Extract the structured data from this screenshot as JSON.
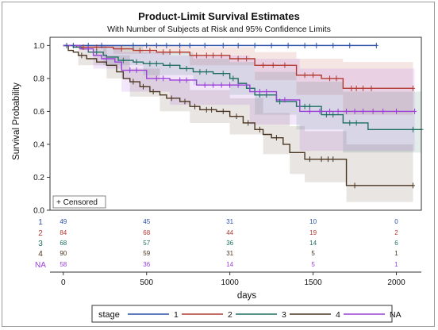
{
  "chart_data": {
    "type": "line",
    "title": "Product-Limit Survival Estimates",
    "subtitle": "With Number of Subjects at Risk and 95% Confidence Limits",
    "xlabel": "days",
    "ylabel": "Survival Probability",
    "xlim": [
      -80,
      2150
    ],
    "ylim": [
      0,
      1.05
    ],
    "x_ticks": [
      0,
      500,
      1000,
      1500,
      2000
    ],
    "y_ticks": [
      0.0,
      0.2,
      0.4,
      0.6,
      0.8,
      1.0
    ],
    "x_tick_labels": [
      "0",
      "500",
      "1000",
      "1500",
      "2000"
    ],
    "y_tick_labels": [
      "0.0",
      "0.2",
      "0.4",
      "0.6",
      "0.8",
      "1.0"
    ],
    "censored_label": "+ Censored",
    "legend_title": "stage",
    "legend_position": "bottom",
    "series": [
      {
        "name": "1",
        "color": "#2b4fa8",
        "steps": [
          [
            0,
            1.0
          ],
          [
            1880,
            1.0
          ]
        ],
        "band": [
          [
            0,
            1.0,
            1.0
          ],
          [
            1880,
            1.0,
            1.0
          ]
        ],
        "censored": [
          [
            20,
            1.0
          ],
          [
            60,
            1.0
          ],
          [
            150,
            1.0
          ],
          [
            230,
            1.0
          ],
          [
            420,
            1.0
          ],
          [
            500,
            1.0
          ],
          [
            560,
            1.0
          ],
          [
            620,
            1.0
          ],
          [
            700,
            1.0
          ],
          [
            760,
            1.0
          ],
          [
            850,
            1.0
          ],
          [
            960,
            1.0
          ],
          [
            1050,
            1.0
          ],
          [
            1150,
            1.0
          ],
          [
            1250,
            1.0
          ],
          [
            1350,
            1.0
          ],
          [
            1450,
            1.0
          ],
          [
            1520,
            1.0
          ],
          [
            1620,
            1.0
          ],
          [
            1720,
            1.0
          ],
          [
            1880,
            1.0
          ]
        ]
      },
      {
        "name": "2",
        "color": "#b23a32",
        "steps": [
          [
            0,
            1.0
          ],
          [
            80,
            0.99
          ],
          [
            300,
            0.98
          ],
          [
            420,
            0.97
          ],
          [
            560,
            0.96
          ],
          [
            760,
            0.94
          ],
          [
            1000,
            0.92
          ],
          [
            1150,
            0.88
          ],
          [
            1400,
            0.82
          ],
          [
            1550,
            0.8
          ],
          [
            1680,
            0.74
          ],
          [
            2100,
            0.74
          ]
        ],
        "band": [
          [
            0,
            1.0,
            1.0
          ],
          [
            300,
            1.0,
            0.95
          ],
          [
            760,
            0.99,
            0.88
          ],
          [
            1150,
            0.96,
            0.79
          ],
          [
            1400,
            0.92,
            0.7
          ],
          [
            1680,
            0.9,
            0.58
          ],
          [
            2100,
            0.9,
            0.55
          ]
        ],
        "censored": [
          [
            120,
            0.99
          ],
          [
            200,
            0.99
          ],
          [
            350,
            0.98
          ],
          [
            460,
            0.97
          ],
          [
            520,
            0.97
          ],
          [
            600,
            0.96
          ],
          [
            640,
            0.96
          ],
          [
            700,
            0.96
          ],
          [
            800,
            0.94
          ],
          [
            860,
            0.94
          ],
          [
            900,
            0.94
          ],
          [
            950,
            0.94
          ],
          [
            1050,
            0.92
          ],
          [
            1100,
            0.92
          ],
          [
            1200,
            0.88
          ],
          [
            1260,
            0.88
          ],
          [
            1330,
            0.88
          ],
          [
            1450,
            0.82
          ],
          [
            1500,
            0.82
          ],
          [
            1600,
            0.8
          ],
          [
            1640,
            0.8
          ],
          [
            1730,
            0.74
          ],
          [
            1760,
            0.74
          ],
          [
            1800,
            0.74
          ],
          [
            1850,
            0.74
          ],
          [
            2100,
            0.74
          ]
        ]
      },
      {
        "name": "3",
        "color": "#1e6f60",
        "steps": [
          [
            0,
            1.0
          ],
          [
            60,
            0.99
          ],
          [
            110,
            0.98
          ],
          [
            150,
            0.96
          ],
          [
            240,
            0.94
          ],
          [
            260,
            0.93
          ],
          [
            330,
            0.91
          ],
          [
            420,
            0.9
          ],
          [
            480,
            0.89
          ],
          [
            600,
            0.88
          ],
          [
            700,
            0.86
          ],
          [
            780,
            0.84
          ],
          [
            900,
            0.83
          ],
          [
            1000,
            0.8
          ],
          [
            1050,
            0.77
          ],
          [
            1100,
            0.74
          ],
          [
            1150,
            0.7
          ],
          [
            1280,
            0.66
          ],
          [
            1400,
            0.63
          ],
          [
            1550,
            0.58
          ],
          [
            1680,
            0.53
          ],
          [
            1830,
            0.49
          ],
          [
            2150,
            0.49
          ]
        ],
        "band": [
          [
            0,
            1.0,
            1.0
          ],
          [
            240,
            1.0,
            0.88
          ],
          [
            480,
            0.96,
            0.82
          ],
          [
            780,
            0.92,
            0.76
          ],
          [
            1000,
            0.9,
            0.7
          ],
          [
            1150,
            0.84,
            0.58
          ],
          [
            1400,
            0.78,
            0.49
          ],
          [
            1680,
            0.72,
            0.35
          ],
          [
            2150,
            0.68,
            0.27
          ]
        ],
        "censored": [
          [
            200,
            0.96
          ],
          [
            360,
            0.91
          ],
          [
            440,
            0.9
          ],
          [
            520,
            0.89
          ],
          [
            560,
            0.89
          ],
          [
            640,
            0.88
          ],
          [
            740,
            0.86
          ],
          [
            820,
            0.84
          ],
          [
            860,
            0.84
          ],
          [
            960,
            0.83
          ],
          [
            1020,
            0.8
          ],
          [
            1180,
            0.7
          ],
          [
            1220,
            0.7
          ],
          [
            1300,
            0.66
          ],
          [
            1450,
            0.63
          ],
          [
            1480,
            0.63
          ],
          [
            1580,
            0.58
          ],
          [
            1620,
            0.58
          ],
          [
            1720,
            0.53
          ],
          [
            1760,
            0.53
          ],
          [
            2100,
            0.49
          ],
          [
            2150,
            0.49
          ]
        ]
      },
      {
        "name": "4",
        "color": "#4a3520",
        "steps": [
          [
            0,
            1.0
          ],
          [
            30,
            0.97
          ],
          [
            60,
            0.96
          ],
          [
            90,
            0.94
          ],
          [
            140,
            0.92
          ],
          [
            200,
            0.9
          ],
          [
            260,
            0.88
          ],
          [
            320,
            0.84
          ],
          [
            360,
            0.8
          ],
          [
            400,
            0.78
          ],
          [
            460,
            0.75
          ],
          [
            520,
            0.72
          ],
          [
            580,
            0.7
          ],
          [
            620,
            0.68
          ],
          [
            700,
            0.66
          ],
          [
            760,
            0.63
          ],
          [
            820,
            0.61
          ],
          [
            920,
            0.6
          ],
          [
            1000,
            0.57
          ],
          [
            1080,
            0.53
          ],
          [
            1150,
            0.49
          ],
          [
            1200,
            0.46
          ],
          [
            1250,
            0.44
          ],
          [
            1320,
            0.4
          ],
          [
            1360,
            0.35
          ],
          [
            1450,
            0.31
          ],
          [
            1700,
            0.15
          ],
          [
            2100,
            0.15
          ]
        ],
        "band": [
          [
            0,
            1.0,
            1.0
          ],
          [
            90,
            1.0,
            0.88
          ],
          [
            260,
            0.94,
            0.8
          ],
          [
            400,
            0.86,
            0.69
          ],
          [
            580,
            0.79,
            0.6
          ],
          [
            760,
            0.73,
            0.53
          ],
          [
            1000,
            0.68,
            0.46
          ],
          [
            1200,
            0.59,
            0.34
          ],
          [
            1360,
            0.51,
            0.22
          ],
          [
            1450,
            0.48,
            0.17
          ],
          [
            1700,
            0.4,
            0.05
          ],
          [
            2100,
            0.4,
            0.05
          ]
        ],
        "censored": [
          [
            110,
            0.94
          ],
          [
            420,
            0.78
          ],
          [
            480,
            0.75
          ],
          [
            540,
            0.72
          ],
          [
            650,
            0.68
          ],
          [
            730,
            0.66
          ],
          [
            790,
            0.63
          ],
          [
            860,
            0.61
          ],
          [
            890,
            0.61
          ],
          [
            960,
            0.6
          ],
          [
            1040,
            0.57
          ],
          [
            1110,
            0.53
          ],
          [
            1180,
            0.49
          ],
          [
            1280,
            0.44
          ],
          [
            1480,
            0.31
          ],
          [
            1550,
            0.31
          ],
          [
            1590,
            0.31
          ],
          [
            1620,
            0.31
          ],
          [
            1750,
            0.15
          ],
          [
            2100,
            0.15
          ]
        ]
      },
      {
        "name": "NA",
        "color": "#9a3fd8",
        "steps": [
          [
            0,
            1.0
          ],
          [
            100,
            0.98
          ],
          [
            180,
            0.94
          ],
          [
            230,
            0.92
          ],
          [
            310,
            0.9
          ],
          [
            350,
            0.85
          ],
          [
            500,
            0.8
          ],
          [
            640,
            0.79
          ],
          [
            800,
            0.76
          ],
          [
            1120,
            0.72
          ],
          [
            1280,
            0.67
          ],
          [
            1420,
            0.6
          ],
          [
            2110,
            0.6
          ]
        ],
        "band": [
          [
            0,
            1.0,
            1.0
          ],
          [
            180,
            1.0,
            0.86
          ],
          [
            350,
            0.96,
            0.72
          ],
          [
            640,
            0.94,
            0.64
          ],
          [
            1120,
            0.92,
            0.52
          ],
          [
            1420,
            0.86,
            0.36
          ],
          [
            2110,
            0.86,
            0.33
          ]
        ],
        "censored": [
          [
            150,
            0.98
          ],
          [
            260,
            0.92
          ],
          [
            400,
            0.85
          ],
          [
            440,
            0.85
          ],
          [
            560,
            0.8
          ],
          [
            600,
            0.8
          ],
          [
            700,
            0.79
          ],
          [
            740,
            0.79
          ],
          [
            850,
            0.76
          ],
          [
            900,
            0.76
          ],
          [
            950,
            0.76
          ],
          [
            1000,
            0.76
          ],
          [
            1050,
            0.76
          ],
          [
            1180,
            0.72
          ],
          [
            1220,
            0.72
          ],
          [
            1330,
            0.67
          ],
          [
            1480,
            0.6
          ],
          [
            1540,
            0.6
          ],
          [
            1600,
            0.6
          ],
          [
            1650,
            0.6
          ],
          [
            1700,
            0.6
          ],
          [
            1750,
            0.6
          ],
          [
            1800,
            0.6
          ],
          [
            1860,
            0.6
          ],
          [
            1920,
            0.6
          ],
          [
            2000,
            0.6
          ],
          [
            2110,
            0.6
          ]
        ]
      }
    ],
    "at_risk": {
      "times": [
        0,
        500,
        1000,
        1500,
        2000
      ],
      "rows": [
        {
          "name": "1",
          "values": [
            "49",
            "45",
            "31",
            "10",
            "0"
          ]
        },
        {
          "name": "2",
          "values": [
            "84",
            "68",
            "44",
            "19",
            "2"
          ]
        },
        {
          "name": "3",
          "values": [
            "68",
            "57",
            "36",
            "14",
            "6"
          ]
        },
        {
          "name": "4",
          "values": [
            "90",
            "59",
            "31",
            "5",
            "1"
          ]
        },
        {
          "name": "NA",
          "values": [
            "58",
            "36",
            "14",
            "5",
            "1"
          ]
        }
      ]
    }
  }
}
